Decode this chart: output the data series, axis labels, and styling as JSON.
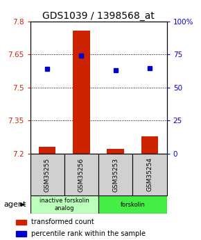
{
  "title": "GDS1039 / 1398568_at",
  "samples": [
    "GSM35255",
    "GSM35256",
    "GSM35253",
    "GSM35254"
  ],
  "transformed_counts": [
    7.23,
    7.76,
    7.22,
    7.28
  ],
  "percentile_ranks": [
    7.585,
    7.645,
    7.58,
    7.588
  ],
  "ylim_left": [
    7.2,
    7.8
  ],
  "yticks_left": [
    7.2,
    7.35,
    7.5,
    7.65,
    7.8
  ],
  "ytick_labels_left": [
    "7.2",
    "7.35",
    "7.5",
    "7.65",
    "7.8"
  ],
  "yticks_right": [
    0,
    25,
    50,
    75,
    100
  ],
  "ytick_labels_right": [
    "0",
    "25",
    "50",
    "75",
    "100%"
  ],
  "baseline": 7.2,
  "gridlines": [
    7.35,
    7.5,
    7.65
  ],
  "groups": [
    {
      "label": "inactive forskolin\nanalog",
      "samples": [
        0,
        1
      ],
      "color": "#bbffbb"
    },
    {
      "label": "forskolin",
      "samples": [
        2,
        3
      ],
      "color": "#44ee44"
    }
  ],
  "bar_color": "#cc2200",
  "dot_color": "#0000cc",
  "bar_width": 0.5,
  "left_axis_color": "#cc2200",
  "right_axis_color": "#0000cc",
  "title_fontsize": 10,
  "tick_fontsize": 7.5,
  "legend_fontsize": 7,
  "agent_label": "agent",
  "legend_items": [
    {
      "color": "#cc2200",
      "label": "transformed count"
    },
    {
      "color": "#0000cc",
      "label": "percentile rank within the sample"
    }
  ]
}
